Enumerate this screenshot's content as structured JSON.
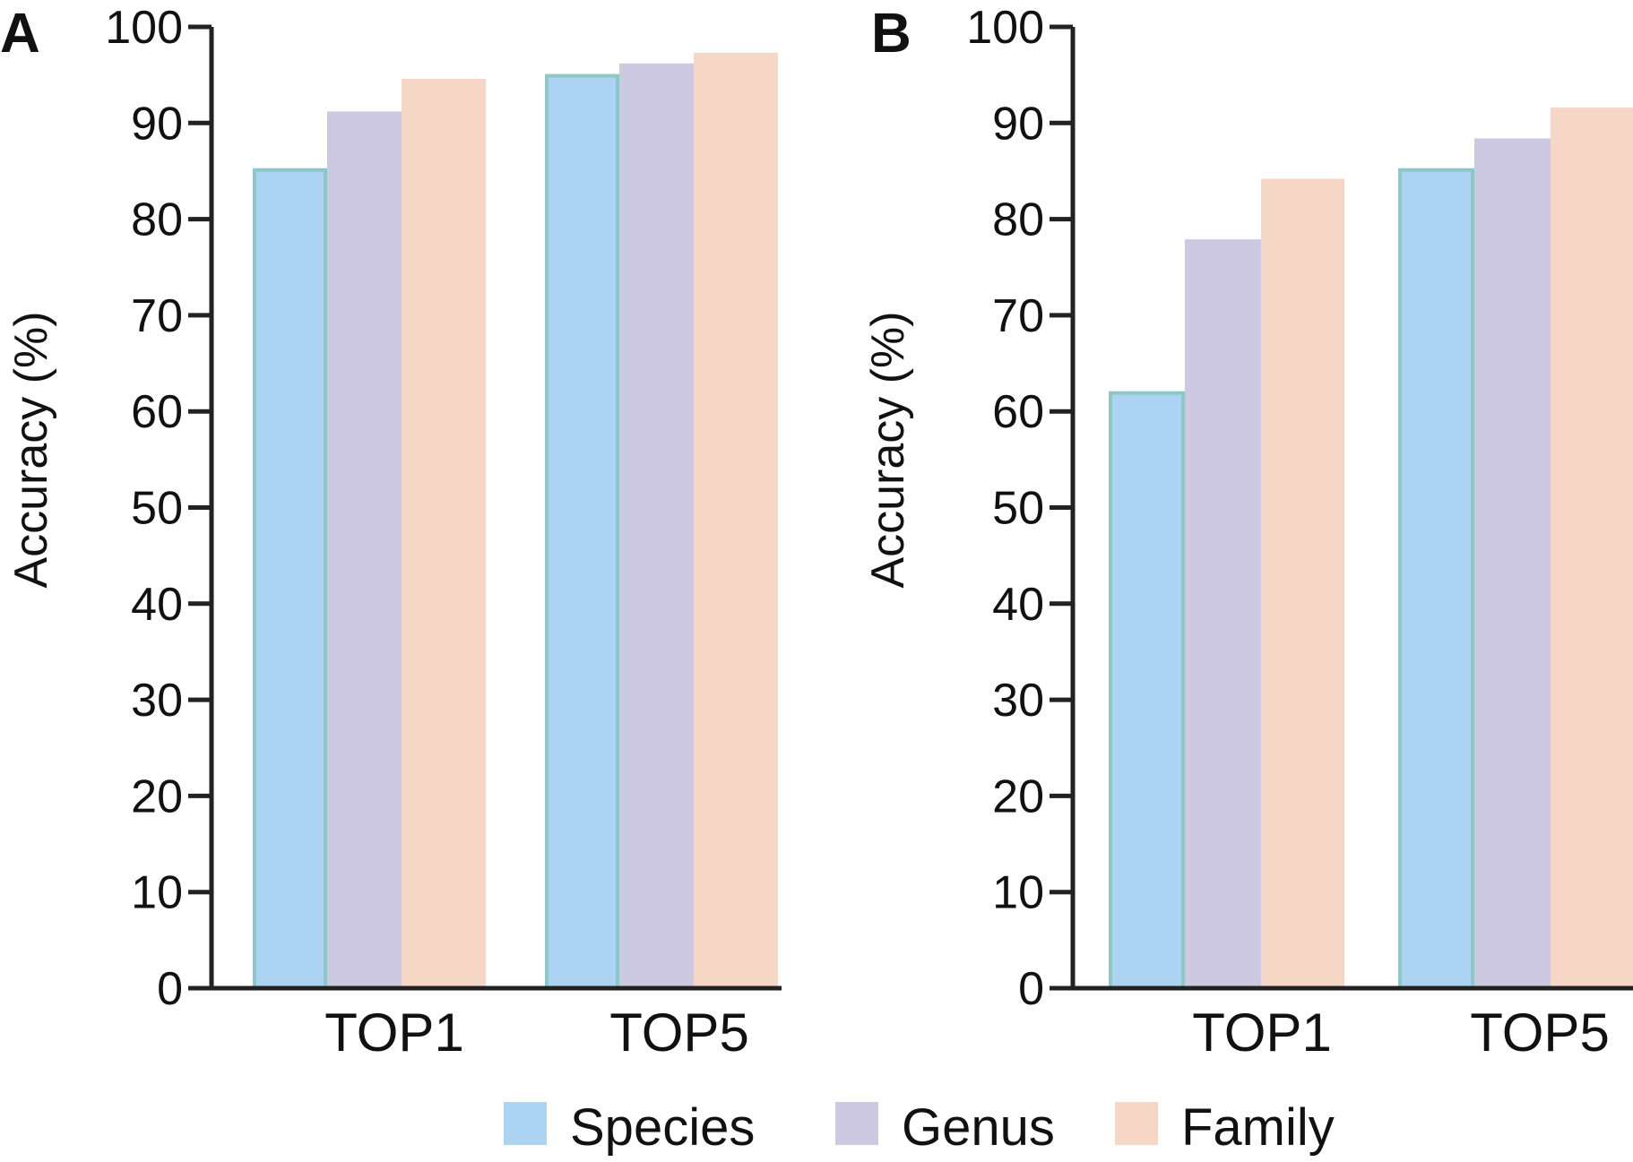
{
  "colors": {
    "species": "#add3f3",
    "species_edge": "#8ec8c6",
    "genus": "#cec9e2",
    "family": "#f6d7c6"
  },
  "legend": [
    {
      "key": "species",
      "label": "Species"
    },
    {
      "key": "genus",
      "label": "Genus"
    },
    {
      "key": "family",
      "label": "Family"
    }
  ],
  "chart_data": [
    {
      "panel": "A",
      "type": "bar",
      "ylabel": "Accuracy (%)",
      "ylim": [
        0,
        100
      ],
      "yticks": [
        0,
        10,
        20,
        30,
        40,
        50,
        60,
        70,
        80,
        90,
        100
      ],
      "categories": [
        "TOP1",
        "TOP5"
      ],
      "series": [
        {
          "name": "Species",
          "key": "species",
          "values": [
            85.3,
            95.1
          ]
        },
        {
          "name": "Genus",
          "key": "genus",
          "values": [
            91.2,
            96.2
          ]
        },
        {
          "name": "Family",
          "key": "family",
          "values": [
            94.6,
            97.3
          ]
        }
      ]
    },
    {
      "panel": "B",
      "type": "bar",
      "ylabel": "Accuracy (%)",
      "ylim": [
        0,
        100
      ],
      "yticks": [
        0,
        10,
        20,
        30,
        40,
        50,
        60,
        70,
        80,
        90,
        100
      ],
      "categories": [
        "TOP1",
        "TOP5"
      ],
      "series": [
        {
          "name": "Species",
          "key": "species",
          "values": [
            62.1,
            85.3
          ]
        },
        {
          "name": "Genus",
          "key": "genus",
          "values": [
            77.9,
            88.4
          ]
        },
        {
          "name": "Family",
          "key": "family",
          "values": [
            84.2,
            91.6
          ]
        }
      ]
    }
  ]
}
